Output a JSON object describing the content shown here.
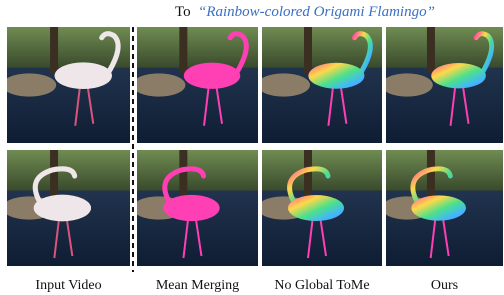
{
  "header": {
    "prefix": "To",
    "prompt": "“Rainbow-colored Origami Flamingo”"
  },
  "columns": [
    {
      "label": "Input Video"
    },
    {
      "label": "Mean Merging"
    },
    {
      "label": "No Global ToMe"
    },
    {
      "label": "Ours"
    }
  ]
}
